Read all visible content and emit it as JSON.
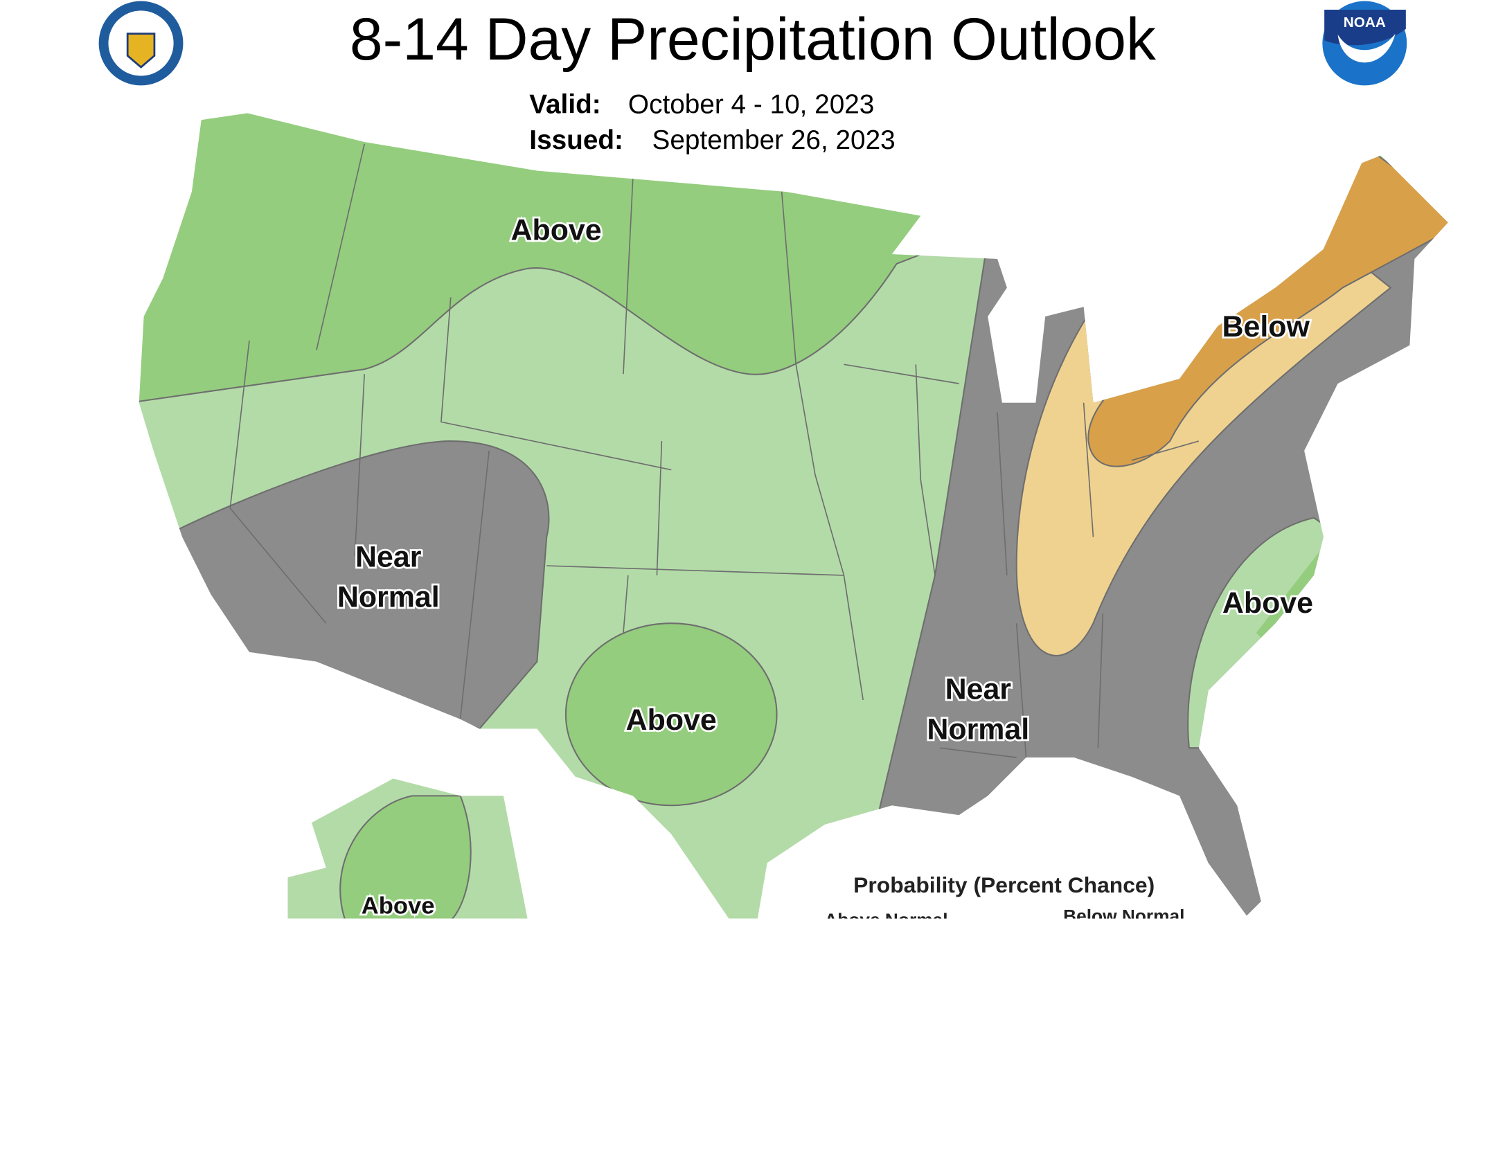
{
  "header": {
    "title": "8-14 Day Precipitation Outlook",
    "valid_label": "Valid:",
    "valid_date": "October 4 - 10, 2023",
    "issued_label": "Issued:",
    "issued_date": "September 26, 2023"
  },
  "logos": {
    "noaa": "NOAA"
  },
  "map": {
    "labels": [
      {
        "lines": [
          "Above"
        ]
      },
      {
        "lines": [
          "Below"
        ]
      },
      {
        "lines": [
          "Near",
          "Normal"
        ]
      },
      {
        "lines": [
          "Above"
        ]
      },
      {
        "lines": [
          "Near",
          "Normal"
        ]
      },
      {
        "lines": [
          "Above"
        ]
      },
      {
        "lines": [
          "Above"
        ]
      }
    ]
  },
  "legend": {
    "title": "Probability (Percent Chance)",
    "columns": [
      "Above Normal",
      "Below Normal"
    ]
  }
}
